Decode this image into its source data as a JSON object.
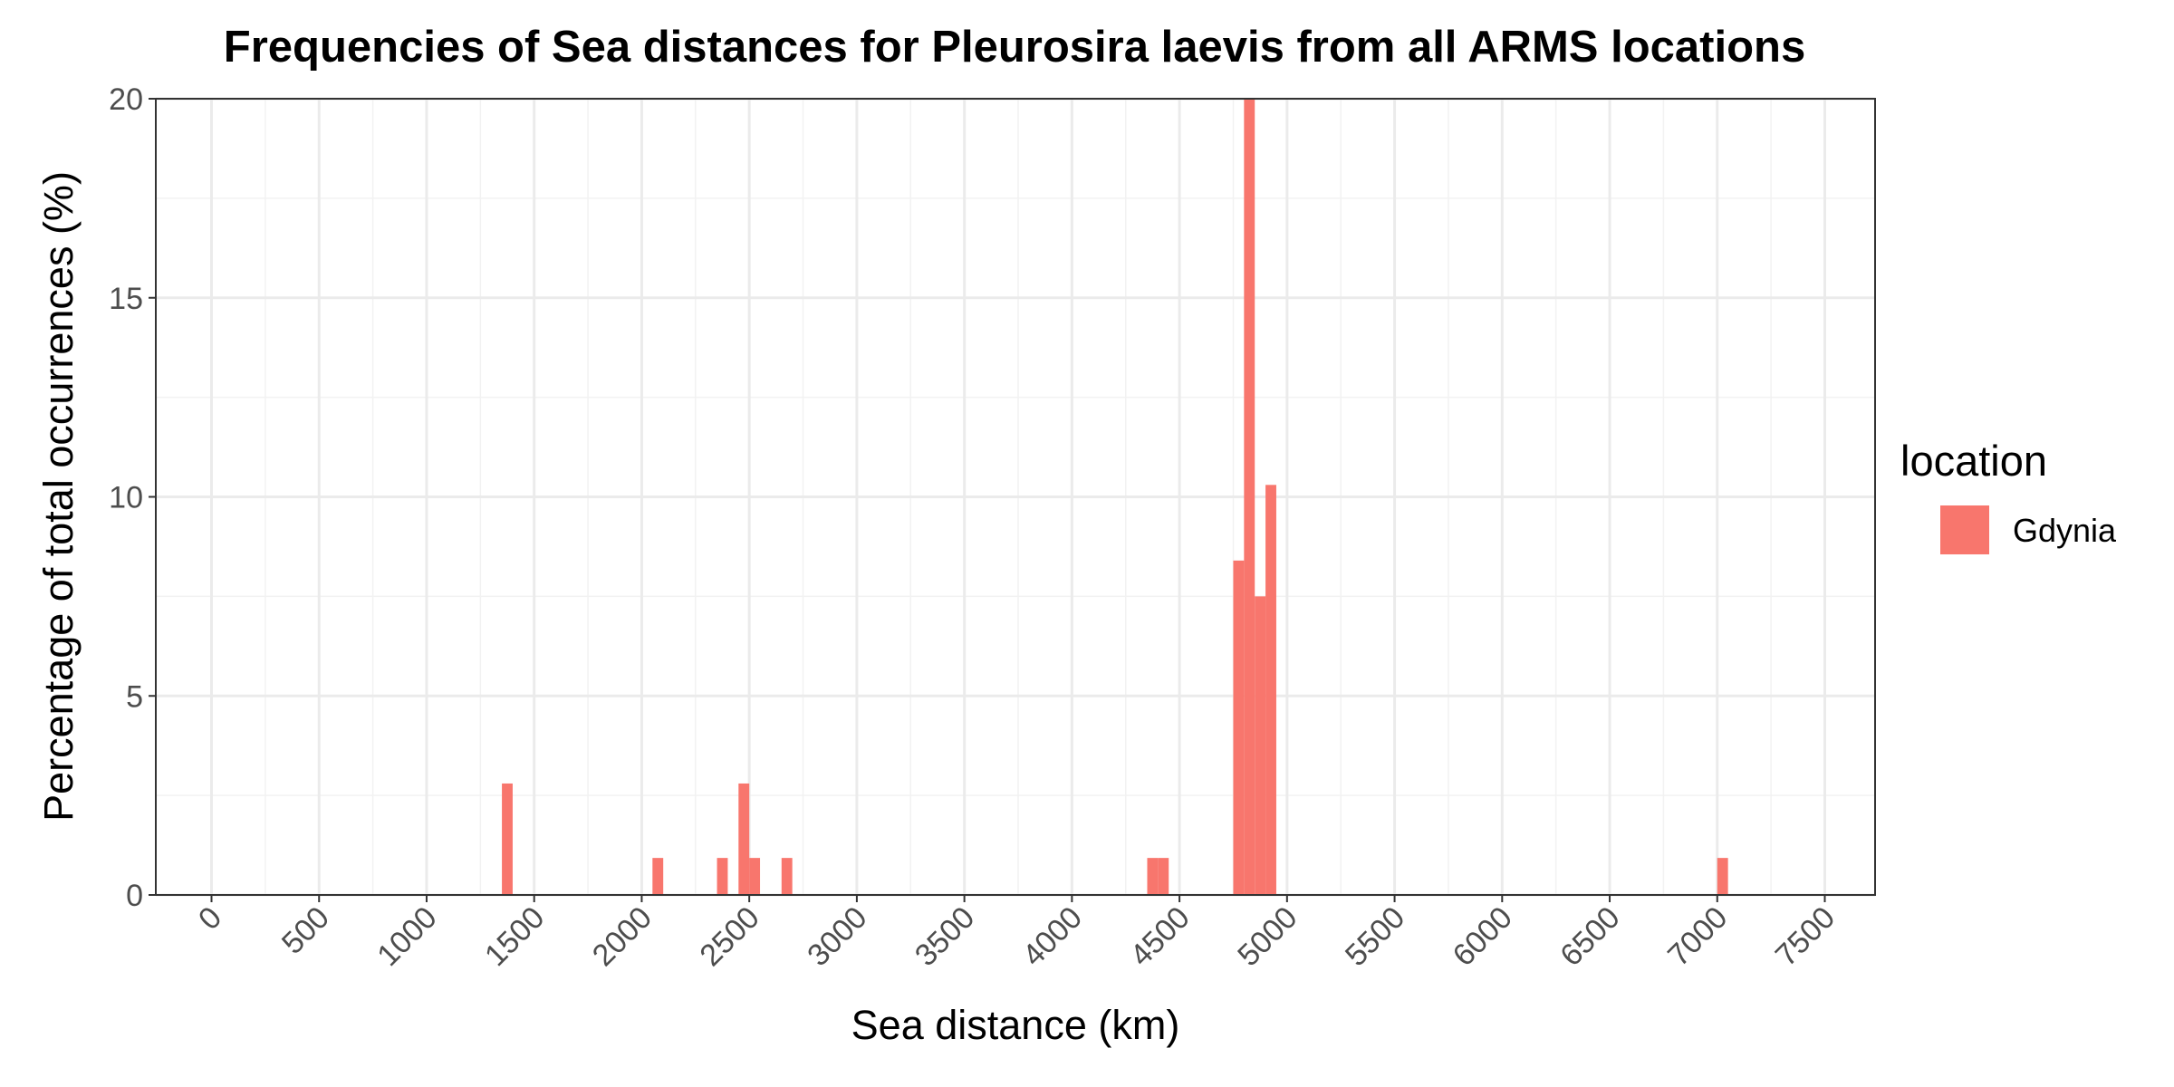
{
  "chart_data": {
    "type": "bar",
    "title": "Frequencies of Sea distances for Pleurosira laevis from all ARMS locations",
    "xlabel": "Sea distance (km)",
    "ylabel": "Percentage of total occurrences (%)",
    "xlim": [
      0,
      7500
    ],
    "ylim": [
      0,
      20
    ],
    "x_ticks": [
      "0",
      "500",
      "1000",
      "1500",
      "2000",
      "2500",
      "3000",
      "3500",
      "4000",
      "4500",
      "5000",
      "5500",
      "6000",
      "6500",
      "7000",
      "7500"
    ],
    "y_ticks": [
      "0",
      "5",
      "10",
      "15",
      "20"
    ],
    "grid": true,
    "bin_width": 50,
    "legend": {
      "title": "location",
      "position": "right"
    },
    "series": [
      {
        "name": "Gdynia",
        "color": "#F8766D",
        "bins": [
          {
            "x": 1375,
            "y": 2.8
          },
          {
            "x": 2075,
            "y": 0.93
          },
          {
            "x": 2375,
            "y": 0.93
          },
          {
            "x": 2475,
            "y": 2.8
          },
          {
            "x": 2525,
            "y": 0.93
          },
          {
            "x": 2675,
            "y": 0.93
          },
          {
            "x": 4375,
            "y": 0.93
          },
          {
            "x": 4425,
            "y": 0.93
          },
          {
            "x": 4775,
            "y": 8.4
          },
          {
            "x": 4825,
            "y": 20.0
          },
          {
            "x": 4875,
            "y": 7.5
          },
          {
            "x": 4925,
            "y": 10.3
          },
          {
            "x": 7025,
            "y": 0.93
          }
        ]
      }
    ]
  }
}
